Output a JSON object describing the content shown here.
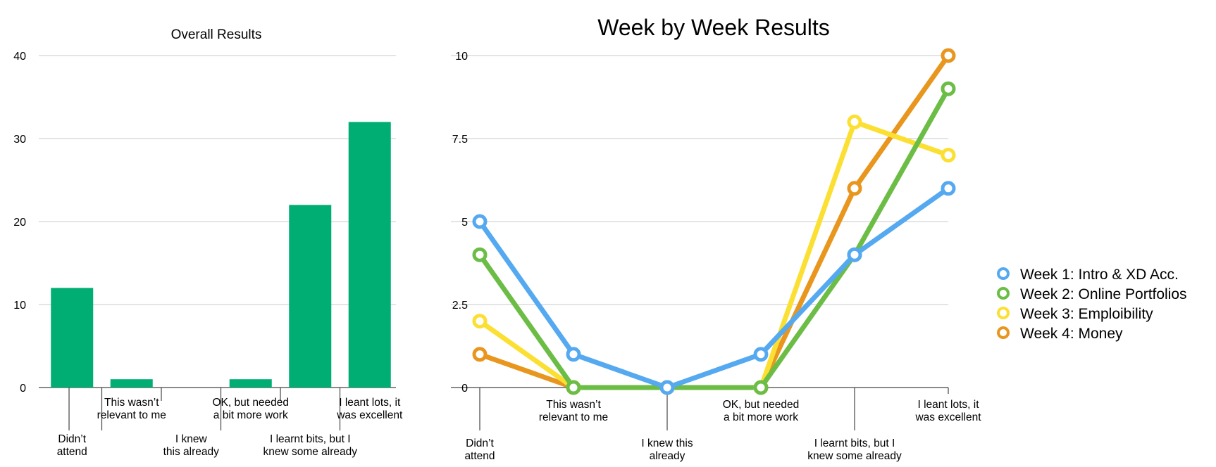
{
  "chart_data": [
    {
      "type": "bar",
      "title": "Overall Results",
      "xlabel": "",
      "ylabel": "",
      "ylim": [
        0,
        40
      ],
      "yticks": [
        "0",
        "10",
        "20",
        "30",
        "40"
      ],
      "grid": true,
      "color": "#00AD73",
      "categories": [
        [
          "Didn’t",
          "attend"
        ],
        [
          "This wasn’t",
          "relevant to me"
        ],
        [
          "I knew",
          "this already"
        ],
        [
          "OK, but needed",
          "a bit more  work"
        ],
        [
          "I learnt bits, but  I",
          "knew some already"
        ],
        [
          "I leant lots, it",
          "was excellent"
        ]
      ],
      "values": [
        12,
        1,
        0,
        1,
        22,
        32
      ]
    },
    {
      "type": "line",
      "title": "Week by Week Results",
      "xlabel": "",
      "ylabel": "",
      "ylim": [
        0,
        10
      ],
      "yticks": [
        "0",
        "2.5",
        "5",
        "7.5",
        "10"
      ],
      "grid": true,
      "legend_position": "right",
      "categories": [
        [
          "Didn’t",
          "attend"
        ],
        [
          "This wasn’t",
          "relevant to me"
        ],
        [
          "I knew this",
          "already"
        ],
        [
          "OK, but needed",
          "a bit more  work"
        ],
        [
          "I learnt bits, but  I",
          "knew some already"
        ],
        [
          "I leant lots, it",
          "was excellent"
        ]
      ],
      "series": [
        {
          "name": "Week 4: Money",
          "color": "#E8961E",
          "values": [
            1,
            0,
            0,
            0,
            6,
            10
          ]
        },
        {
          "name": "Week 3: Emploibility",
          "color": "#FBE033",
          "values": [
            2,
            0,
            0,
            0,
            8,
            7
          ]
        },
        {
          "name": "Week 2: Online Portfolios",
          "color": "#6CBD45",
          "values": [
            4,
            0,
            0,
            0,
            4,
            9
          ]
        },
        {
          "name": "Week 1: Intro & XD Acc.",
          "color": "#55A9F0",
          "values": [
            5,
            1,
            0,
            1,
            4,
            6
          ]
        }
      ],
      "legend_order": [
        "Week 1: Intro & XD Acc.",
        "Week 2: Online Portfolios",
        "Week 3: Emploibility",
        "Week 4: Money"
      ]
    }
  ]
}
